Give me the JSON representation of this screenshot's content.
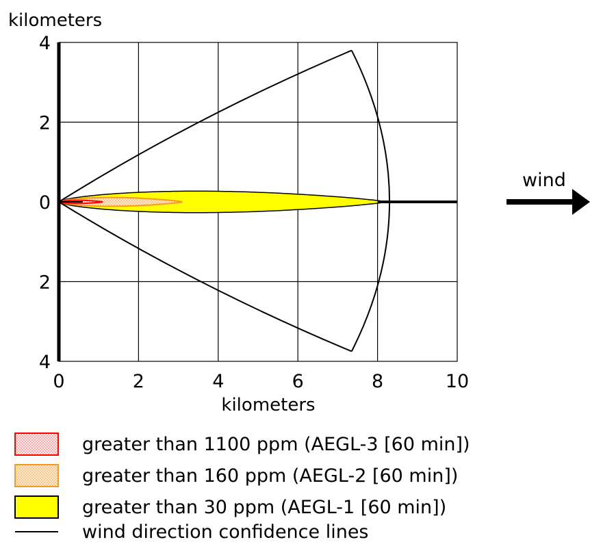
{
  "chart_data": {
    "type": "area",
    "title": "",
    "ylabel": "kilometers",
    "xlabel": "kilometers",
    "xlim": [
      0,
      10
    ],
    "ylim": [
      -4,
      4
    ],
    "x_ticks": [
      {
        "value": 0,
        "label": "0"
      },
      {
        "value": 2,
        "label": "2"
      },
      {
        "value": 4,
        "label": "4"
      },
      {
        "value": 6,
        "label": "6"
      },
      {
        "value": 8,
        "label": "8"
      },
      {
        "value": 10,
        "label": "10"
      }
    ],
    "y_ticks": [
      {
        "value": 4,
        "label": "4"
      },
      {
        "value": 2,
        "label": "2"
      },
      {
        "value": 0,
        "label": "0"
      },
      {
        "value": -2,
        "label": "2"
      },
      {
        "value": -4,
        "label": "4"
      }
    ],
    "grid": true,
    "wind_label": "wind",
    "zones": [
      {
        "name": "AEGL-1",
        "label": "greater than 30 ppm (AEGL-1 [60 min])",
        "fill": "#ffff00",
        "stroke": "#000000",
        "pattern": "solid",
        "max_distance_km": 8.2,
        "max_half_width_km": 0.27
      },
      {
        "name": "AEGL-2",
        "label": "greater than 160 ppm (AEGL-2 [60 min])",
        "fill": "#f6c48a",
        "stroke": "#f59a1e",
        "pattern": "dotted",
        "max_distance_km": 3.1,
        "max_half_width_km": 0.11
      },
      {
        "name": "AEGL-3",
        "label": "greater than 1100 ppm (AEGL-3 [60 min])",
        "fill": "#f6a8a8",
        "stroke": "#ff0000",
        "pattern": "dotted",
        "max_distance_km": 1.1,
        "max_half_width_km": 0.04
      }
    ],
    "confidence_lines": {
      "label": "wind direction confidence lines",
      "upper_tip": {
        "x": 7.35,
        "y": 3.8
      },
      "lower_tip": {
        "x": 7.35,
        "y": -3.75
      },
      "arc_max_x": 8.3,
      "color": "#000000"
    },
    "legend": [
      {
        "zone": "AEGL-3",
        "label": "greater than 1100 ppm (AEGL-3 [60 min])"
      },
      {
        "zone": "AEGL-2",
        "label": "greater than 160 ppm (AEGL-2 [60 min])"
      },
      {
        "zone": "AEGL-1",
        "label": "greater than 30 ppm (AEGL-1 [60 min])"
      },
      {
        "zone": "lines",
        "label": "wind direction confidence lines"
      }
    ],
    "legend_position": "bottom-left"
  }
}
